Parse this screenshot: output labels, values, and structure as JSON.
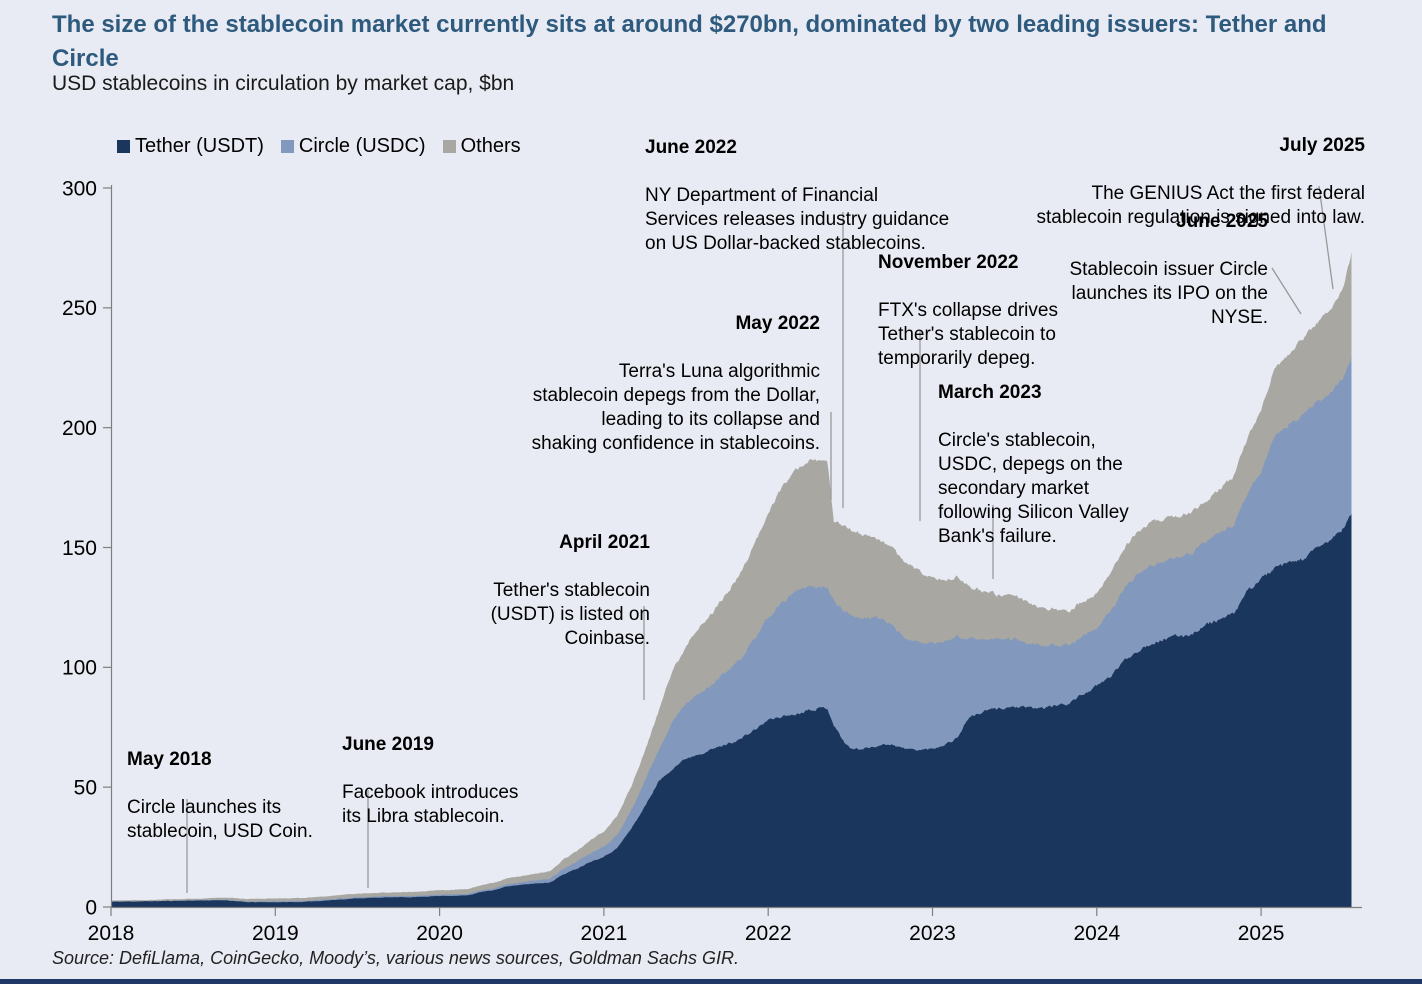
{
  "header": {
    "title": "The size of the stablecoin market currently sits at around $270bn, dominated by two leading issuers: Tether and Circle",
    "subtitle": "USD stablecoins in circulation by market cap, $bn"
  },
  "source": "Source: DefiLlama, CoinGecko, Moody’s, various news sources, Goldman Sachs GIR.",
  "colors": {
    "background": "#E9EBF4",
    "title_text": "#2D5A7D",
    "axis": "#7F7F7F",
    "leader_line": "#999999",
    "bottom_bar": "#1F3868",
    "tether": "#1A365D",
    "circle": "#8298BC",
    "others": "#A8A7A2"
  },
  "chart_data": {
    "type": "area",
    "stacked": true,
    "title": "USD stablecoins in circulation by market cap, $bn",
    "xlabel": "",
    "ylabel": "",
    "xlim": [
      2018,
      2025.55
    ],
    "ylim": [
      0,
      300
    ],
    "grid": false,
    "legend_position": "top-left",
    "x_ticks": [
      2018,
      2019,
      2020,
      2021,
      2022,
      2023,
      2024,
      2025
    ],
    "y_ticks": [
      0,
      50,
      100,
      150,
      200,
      250,
      300
    ],
    "x": [
      2018.0,
      2018.25,
      2018.5,
      2018.7,
      2018.83,
      2019.0,
      2019.17,
      2019.33,
      2019.5,
      2019.67,
      2019.83,
      2020.0,
      2020.17,
      2020.25,
      2020.33,
      2020.42,
      2020.5,
      2020.58,
      2020.67,
      2020.75,
      2020.83,
      2020.92,
      2021.0,
      2021.08,
      2021.17,
      2021.25,
      2021.33,
      2021.42,
      2021.5,
      2021.58,
      2021.67,
      2021.75,
      2021.83,
      2021.92,
      2022.0,
      2022.08,
      2022.17,
      2022.25,
      2022.33,
      2022.36,
      2022.4,
      2022.45,
      2022.5,
      2022.58,
      2022.67,
      2022.75,
      2022.83,
      2022.92,
      2023.0,
      2023.08,
      2023.15,
      2023.22,
      2023.33,
      2023.42,
      2023.5,
      2023.58,
      2023.67,
      2023.75,
      2023.83,
      2023.92,
      2024.0,
      2024.08,
      2024.17,
      2024.25,
      2024.33,
      2024.42,
      2024.5,
      2024.58,
      2024.67,
      2024.75,
      2024.83,
      2024.92,
      2025.0,
      2025.08,
      2025.17,
      2025.25,
      2025.33,
      2025.42,
      2025.5,
      2025.55
    ],
    "series": [
      {
        "name": "Tether (USDT)",
        "color": "#1A365D",
        "values": [
          2.2,
          2.4,
          2.7,
          2.8,
          2.0,
          2.0,
          2.1,
          2.8,
          3.6,
          4.0,
          4.1,
          4.6,
          4.8,
          6.2,
          7.0,
          8.8,
          9.2,
          9.8,
          10.2,
          13.5,
          15.8,
          19.0,
          21.0,
          24.5,
          33,
          42,
          52,
          58,
          62,
          64,
          66,
          68,
          70,
          74,
          78,
          79.5,
          80.5,
          82.5,
          83,
          83,
          76,
          70,
          66,
          66,
          67.5,
          68,
          66,
          65.5,
          66,
          68,
          70.5,
          79,
          82,
          83,
          83.5,
          83,
          83,
          84,
          85,
          89,
          92,
          96,
          103,
          107,
          110,
          112,
          113,
          114,
          118,
          120,
          122,
          132,
          137,
          141,
          143.5,
          145,
          149,
          153,
          158,
          164
        ]
      },
      {
        "name": "Circle (USDC)",
        "color": "#8298BC",
        "values": [
          0,
          0,
          0.1,
          0.2,
          0.3,
          0.35,
          0.35,
          0.4,
          0.45,
          0.5,
          0.52,
          0.55,
          0.6,
          0.7,
          0.75,
          0.85,
          1.1,
          1.3,
          1.5,
          2.4,
          2.8,
          3.5,
          4.0,
          5.5,
          8,
          10.5,
          13,
          20,
          23,
          25.5,
          27.5,
          30,
          33,
          38,
          43,
          47,
          51,
          51.5,
          50,
          50,
          51.5,
          54,
          55.5,
          55,
          53,
          50,
          46.5,
          44.5,
          44,
          43,
          42.5,
          33,
          29.5,
          29,
          28.5,
          27.5,
          26,
          25,
          24.3,
          24.3,
          24.5,
          27,
          30,
          32,
          32.5,
          32.5,
          33,
          33.8,
          34.8,
          35.8,
          37.5,
          41,
          44,
          55.5,
          58,
          60,
          61,
          61,
          62.5,
          66
        ]
      },
      {
        "name": "Others",
        "color": "#A8A7A2",
        "values": [
          0.5,
          0.55,
          0.7,
          0.9,
          1.1,
          1.2,
          1.3,
          1.4,
          1.5,
          1.5,
          1.6,
          1.8,
          2.0,
          2.2,
          2.3,
          2.5,
          2.6,
          2.8,
          3.0,
          3.8,
          4.5,
          5.5,
          6.5,
          8,
          10,
          12.5,
          16,
          21,
          24,
          27,
          30,
          33,
          36,
          40,
          44,
          48,
          51,
          52.5,
          53,
          53,
          34,
          35,
          36,
          34.5,
          33.5,
          32,
          31,
          30,
          27,
          26,
          25,
          22,
          19.5,
          18,
          17.5,
          16.8,
          16,
          15.2,
          14.6,
          14.4,
          14,
          15,
          17,
          18,
          18,
          17.6,
          17.2,
          17,
          17.3,
          18.5,
          20,
          23,
          26,
          28,
          29.5,
          31.5,
          33,
          35,
          38,
          43
        ]
      }
    ]
  },
  "annotations": [
    {
      "date": "May 2018",
      "text": "Circle launches its\nstablecoin, USD Coin."
    },
    {
      "date": "June 2019",
      "text": "Facebook introduces\nits Libra stablecoin."
    },
    {
      "date": "April 2021",
      "text": "Tether's stablecoin\n(USDT) is listed on\nCoinbase."
    },
    {
      "date": "May 2022",
      "text": "Terra's Luna algorithmic\nstablecoin depegs from the Dollar,\nleading to its collapse and\nshaking confidence in stablecoins."
    },
    {
      "date": "June 2022",
      "text": "NY Department of Financial\nServices releases industry guidance\non US Dollar-backed stablecoins."
    },
    {
      "date": "November 2022",
      "text": "FTX's collapse drives\nTether's stablecoin to\ntemporarily depeg."
    },
    {
      "date": "March 2023",
      "text": "Circle's stablecoin,\nUSDC, depegs on the\nsecondary market\nfollowing Silicon Valley\nBank's failure."
    },
    {
      "date": "June 2025",
      "text": "Stablecoin issuer Circle\nlaunches its IPO on the\nNYSE."
    },
    {
      "date": "July 2025",
      "text": "The GENIUS Act the first federal\nstablecoin regulation is signed into law."
    }
  ]
}
